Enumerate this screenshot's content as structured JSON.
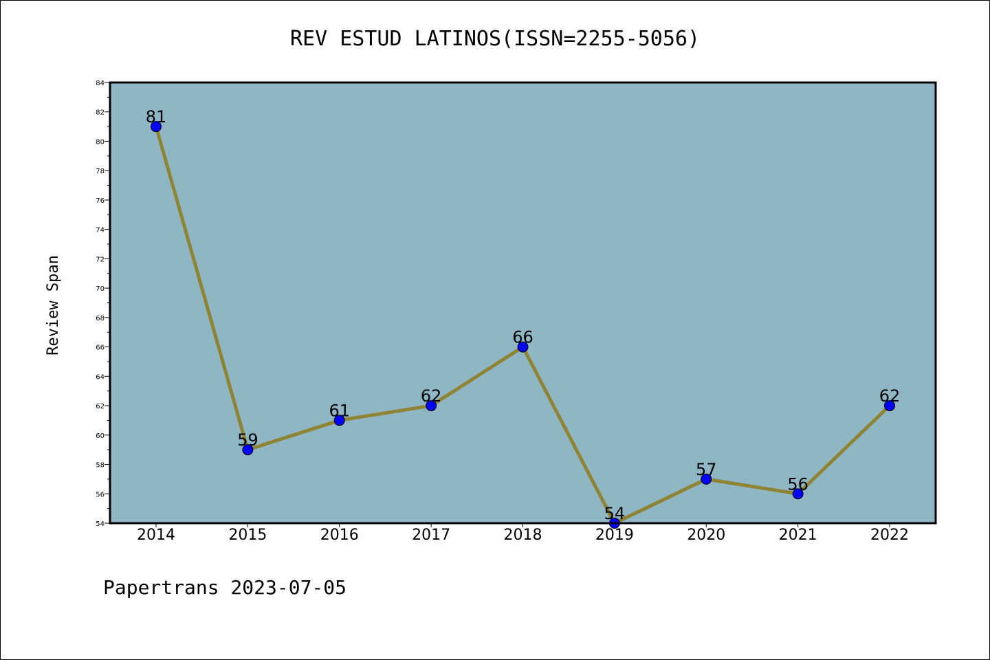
{
  "chart_data": {
    "type": "line",
    "title": "REV ESTUD LATINOS(ISSN=2255-5056)",
    "xlabel": "",
    "ylabel": "Review Span",
    "categories": [
      "2014",
      "2015",
      "2016",
      "2017",
      "2018",
      "2019",
      "2020",
      "2021",
      "2022"
    ],
    "series": [
      {
        "values": [
          81,
          59,
          61,
          62,
          66,
          54,
          57,
          56,
          62
        ]
      }
    ],
    "ylim": [
      54,
      84
    ],
    "yticks": [
      "54",
      "56",
      "58",
      "60",
      "62",
      "64",
      "66",
      "68",
      "70",
      "72",
      "74",
      "76",
      "78",
      "80",
      "82",
      "84"
    ],
    "grid": false,
    "legend": "none",
    "data_labels": true,
    "colors": {
      "plot_background": "#8fb6c4",
      "line": "#8f8433",
      "marker": "#0000ff"
    }
  },
  "footer": "Papertrans 2023-07-05"
}
